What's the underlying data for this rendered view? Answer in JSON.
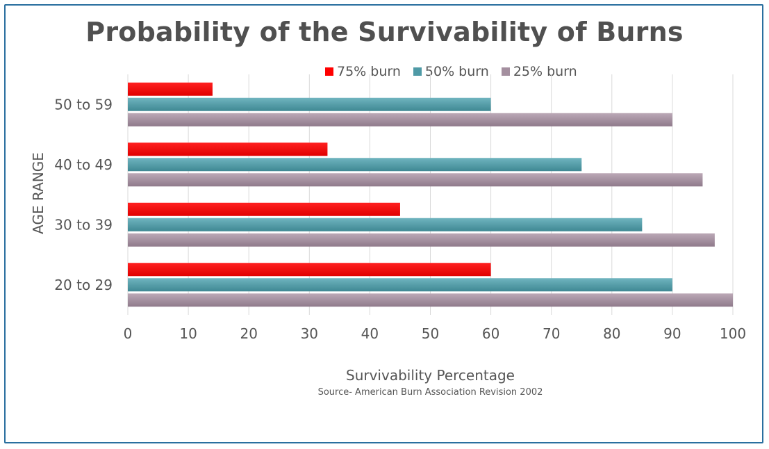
{
  "chart_data": {
    "type": "bar",
    "orientation": "horizontal",
    "title": "Probability of the Survivability of Burns",
    "xlabel": "Survivability Percentage",
    "ylabel": "AGE RANGE",
    "source": "Source- American Burn Association Revision 2002",
    "categories": [
      "20 to 29",
      "30 to 39",
      "40 to 49",
      "50 to 59"
    ],
    "series": [
      {
        "name": "75% burn",
        "color": "#ff0000",
        "values": [
          60,
          45,
          33,
          14
        ]
      },
      {
        "name": "50% burn",
        "color": "#4f9aa6",
        "values": [
          90,
          85,
          75,
          60
        ]
      },
      {
        "name": "25% burn",
        "color": "#a48f9f",
        "values": [
          100,
          97,
          95,
          90
        ]
      }
    ],
    "xlim": [
      0,
      100
    ],
    "xticks": [
      0,
      10,
      20,
      30,
      40,
      50,
      60,
      70,
      80,
      90,
      100
    ],
    "grid": true,
    "legend": "top"
  }
}
